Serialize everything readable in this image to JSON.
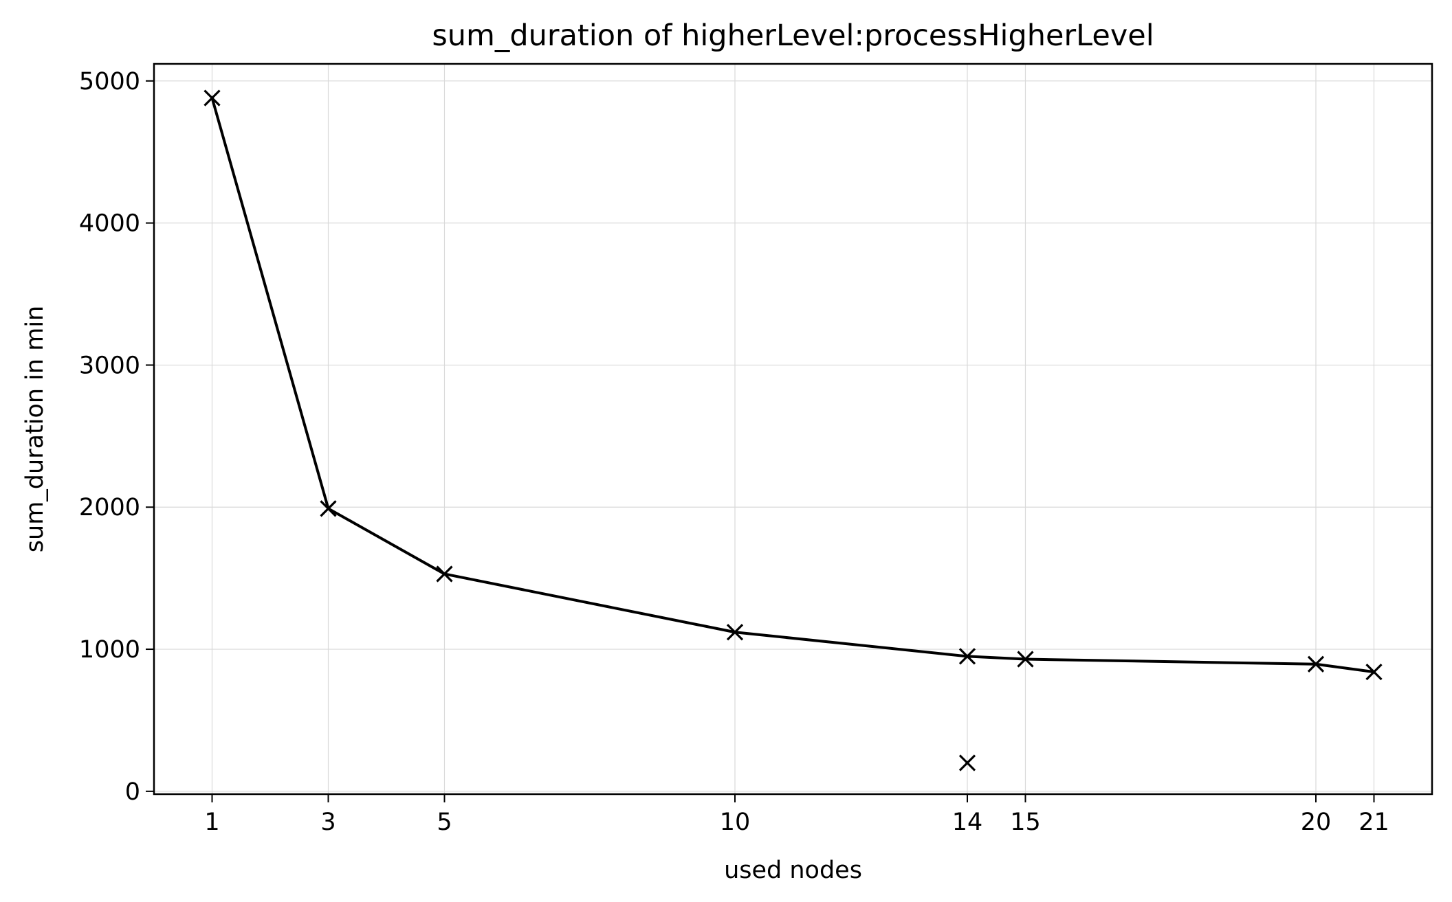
{
  "chart_data": {
    "type": "line",
    "title": "sum_duration of higherLevel:processHigherLevel",
    "xlabel": "used nodes",
    "ylabel": "sum_duration in min",
    "xlim": [
      0,
      22
    ],
    "ylim": [
      -20,
      5120
    ],
    "x_ticks": [
      1,
      3,
      5,
      10,
      14,
      15,
      20,
      21
    ],
    "y_ticks": [
      0,
      1000,
      2000,
      3000,
      4000,
      5000
    ],
    "grid": true,
    "series": [
      {
        "marker": "x",
        "color": "#000000",
        "points": [
          {
            "x": 1,
            "y": 4880
          },
          {
            "x": 3,
            "y": 1990
          },
          {
            "x": 5,
            "y": 1530
          },
          {
            "x": 10,
            "y": 1120
          },
          {
            "x": 14,
            "y": 950
          },
          {
            "x": 15,
            "y": 930
          },
          {
            "x": 20,
            "y": 895
          },
          {
            "x": 21,
            "y": 840
          }
        ]
      },
      {
        "marker": "x",
        "color": "#000000",
        "line": false,
        "points": [
          {
            "x": 14,
            "y": 200
          }
        ]
      }
    ]
  }
}
